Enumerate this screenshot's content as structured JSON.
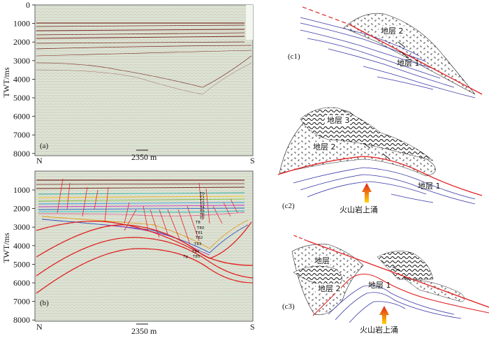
{
  "panel_a": {
    "label": "(a)",
    "ylabel": "TWT/ms",
    "yticks": [
      "0",
      "1000",
      "2000",
      "3000",
      "4000",
      "5000",
      "6000",
      "7000",
      "8000"
    ],
    "left": "N",
    "right": "S",
    "scale": "2350 m"
  },
  "panel_b": {
    "label": "(b)",
    "ylabel": "TWT/ms",
    "yticks": [
      "1000",
      "2000",
      "3000",
      "4000",
      "5000",
      "6000",
      "7000",
      "8000"
    ],
    "left": "N",
    "right": "S",
    "scale": "2350 m",
    "horizons": [
      "T0",
      "T1",
      "T2",
      "T3",
      "T4",
      "T5",
      "T6",
      "T7",
      "T8",
      "T80",
      "T81",
      "T82",
      "T83",
      "T84",
      "Tg",
      "T85"
    ],
    "colors": {
      "fault": "#e8202a",
      "seismic_bg": "#e4ebdd"
    }
  },
  "panel_c1": {
    "label": "(c1)",
    "layer2": "地层 2",
    "layer1": "地层 1"
  },
  "panel_c2": {
    "label": "(c2)",
    "layer3": "地层 3",
    "layer2": "地层 2",
    "layer1": "地层 1",
    "volcano": "火山岩上涌"
  },
  "panel_c3": {
    "label": "(c3)",
    "layer2a": "地层",
    "layer2": "地层 2",
    "layer1": "地层 1",
    "volcano": "火山岩上涌"
  }
}
